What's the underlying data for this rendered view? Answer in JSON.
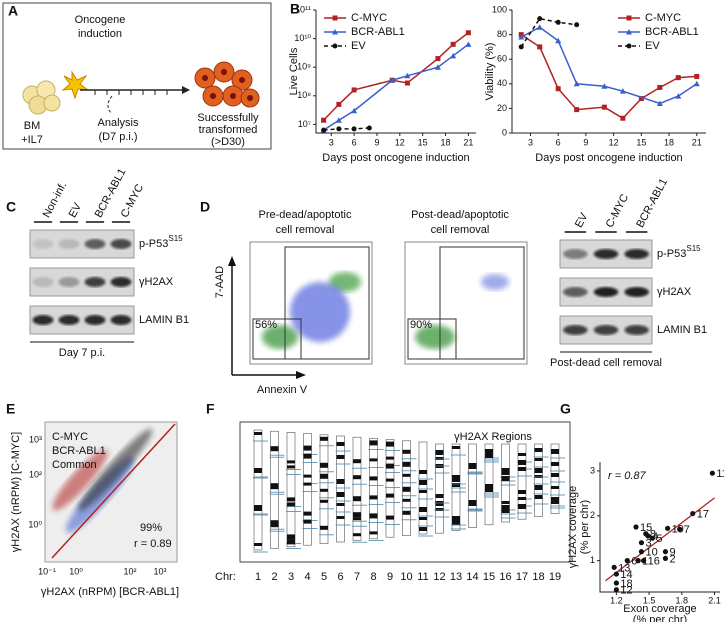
{
  "panel_labels": [
    "A",
    "B",
    "C",
    "D",
    "E",
    "F",
    "G"
  ],
  "panel_a": {
    "induction": [
      "Oncogene",
      "induction"
    ],
    "start": [
      "BM",
      "+IL7"
    ],
    "analysis": [
      "Analysis",
      "(D7 p.i.)"
    ],
    "end": [
      "Successfully",
      "transformed",
      "(>D30)"
    ]
  },
  "panel_c": {
    "lanes": [
      "Non-inf.",
      "EV",
      "BCR-ABL1",
      "C-MYC"
    ],
    "rows": [
      {
        "text": "p-P53",
        "sup": "S15"
      },
      {
        "text": "γH2AX"
      },
      {
        "text": "LAMIN B1"
      }
    ],
    "footer": "Day 7 p.i."
  },
  "panel_d": {
    "flow": [
      {
        "title": [
          "Pre-dead/apoptotic",
          "cell removal"
        ],
        "gate": "56%"
      },
      {
        "title": [
          "Post-dead/apoptotic",
          "cell removal"
        ],
        "gate": "90%"
      }
    ],
    "y_axis": "7-AAD",
    "x_axis": "Annexin V",
    "lanes": [
      "EV",
      "C-MYC",
      "BCR-ABL1"
    ],
    "rows": [
      {
        "text": "p-P53",
        "sup": "S15"
      },
      {
        "text": "γH2AX"
      },
      {
        "text": "LAMIN B1"
      }
    ],
    "footer": "Post-dead cell removal"
  },
  "panel_e": {
    "legend": [
      {
        "name": "C-MYC",
        "color": "#b22222"
      },
      {
        "name": "BCR-ABL1",
        "color": "#3a5fcd"
      },
      {
        "name": "Common",
        "color": "#111111"
      }
    ],
    "percent": "99%",
    "r": "r = 0.89",
    "xlabel": "γH2AX (nRPM) [BCR-ABL1]",
    "ylabel": "γH2AX (nRPM) [C-MYC]",
    "xticks": [
      "10⁻¹",
      "10⁰",
      "10²",
      "10³"
    ],
    "yticks": [
      "10³",
      "10²",
      "10⁰"
    ]
  },
  "panel_f": {
    "title": "γH2AX Regions",
    "axis": "Chr:",
    "chromosomes": [
      "1",
      "2",
      "3",
      "4",
      "5",
      "6",
      "7",
      "8",
      "9",
      "10",
      "11",
      "12",
      "13",
      "14",
      "15",
      "16",
      "17",
      "18",
      "19"
    ]
  },
  "chart_data": [
    {
      "type": "line",
      "ylabel": "Live Cells",
      "xlabel": "Days post oncogene induction",
      "log_y": true,
      "xlim": [
        1,
        22
      ],
      "xticks": [
        3,
        6,
        9,
        12,
        15,
        18,
        21
      ],
      "ylim": [
        5000000,
        100000000000
      ],
      "yticks": [
        {
          "value": 10000000,
          "label": "10⁷"
        },
        {
          "value": 100000000,
          "label": "10⁸"
        },
        {
          "value": 1000000000,
          "label": "10⁹"
        },
        {
          "value": 10000000000,
          "label": "10¹⁰"
        },
        {
          "value": 100000000000,
          "label": "10¹¹"
        }
      ],
      "legend": "upper left",
      "series": [
        {
          "name": "C-MYC",
          "color": "#b22222",
          "marker": "square",
          "x": [
            2,
            4,
            6,
            11,
            13,
            17,
            19,
            21
          ],
          "values": [
            14000000,
            50000000,
            160000000,
            350000000,
            280000000,
            2000000000,
            6300000000,
            16000000000
          ]
        },
        {
          "name": "BCR-ABL1",
          "color": "#3a5fcd",
          "marker": "triangle",
          "x": [
            2,
            4,
            6,
            11,
            13,
            17,
            19,
            21
          ],
          "values": [
            6300000,
            14000000,
            30000000,
            350000000,
            500000000,
            1000000000,
            2500000000,
            6300000000
          ]
        },
        {
          "name": "EV",
          "color": "#111111",
          "marker": "circle",
          "dash": true,
          "x": [
            2,
            4,
            6,
            8
          ],
          "values": [
            6300000,
            7000000,
            7000000,
            7500000
          ]
        }
      ]
    },
    {
      "type": "line",
      "ylabel": "Viability (%)",
      "xlabel": "Days post oncogene induction",
      "log_y": false,
      "xlim": [
        1,
        22
      ],
      "xticks": [
        3,
        6,
        9,
        12,
        15,
        18,
        21
      ],
      "ylim": [
        0,
        100
      ],
      "yticks": [
        0,
        20,
        40,
        60,
        80,
        100
      ],
      "legend": "upper right",
      "series": [
        {
          "name": "C-MYC",
          "color": "#b22222",
          "marker": "square",
          "x": [
            2,
            4,
            6,
            8,
            11,
            13,
            15,
            17,
            19,
            21
          ],
          "values": [
            80,
            70,
            36,
            19,
            21,
            12,
            28,
            37,
            45,
            46
          ]
        },
        {
          "name": "BCR-ABL1",
          "color": "#3a5fcd",
          "marker": "triangle",
          "x": [
            2,
            4,
            6,
            8,
            11,
            13,
            17,
            19,
            21
          ],
          "values": [
            78,
            86,
            75,
            40,
            38,
            34,
            24,
            30,
            40
          ]
        },
        {
          "name": "EV",
          "color": "#111111",
          "marker": "circle",
          "dash": true,
          "x": [
            2,
            4,
            6,
            8
          ],
          "values": [
            70,
            93,
            90,
            88
          ]
        }
      ]
    },
    {
      "type": "scatter",
      "ylabel": [
        "γH2AX coverage",
        "(% per chr)"
      ],
      "xlabel": [
        "Exon coverage",
        "(% per chr)"
      ],
      "annotation": "r = 0.87",
      "xlim": [
        1.05,
        2.15
      ],
      "xticks": [
        1.2,
        1.5,
        1.8,
        2.1
      ],
      "ylim": [
        0.3,
        3.2
      ],
      "yticks": [
        1,
        2,
        3
      ],
      "color": "#111111",
      "x": [
        1.4,
        1.65,
        1.43,
        1.49,
        1.53,
        1.3,
        1.78,
        1.47,
        1.65,
        1.43,
        2.08,
        1.2,
        1.18,
        1.2,
        1.38,
        1.45,
        1.9,
        1.2,
        1.67
      ],
      "values": [
        1.0,
        1.05,
        1.4,
        1.55,
        1.5,
        1.0,
        1.7,
        1.6,
        1.2,
        1.2,
        2.95,
        0.35,
        0.85,
        0.7,
        1.75,
        1.0,
        2.05,
        0.5,
        1.72
      ],
      "point_labels": [
        "1",
        "2",
        "3",
        "4",
        "5",
        "6",
        "7",
        "8",
        "9",
        "10",
        "11",
        "12",
        "13",
        "14",
        "15",
        "16",
        "17",
        "18",
        "19"
      ],
      "fit": {
        "color": "#b22222",
        "x": [
          1.1,
          2.1
        ],
        "y": [
          0.55,
          2.4
        ]
      }
    }
  ]
}
